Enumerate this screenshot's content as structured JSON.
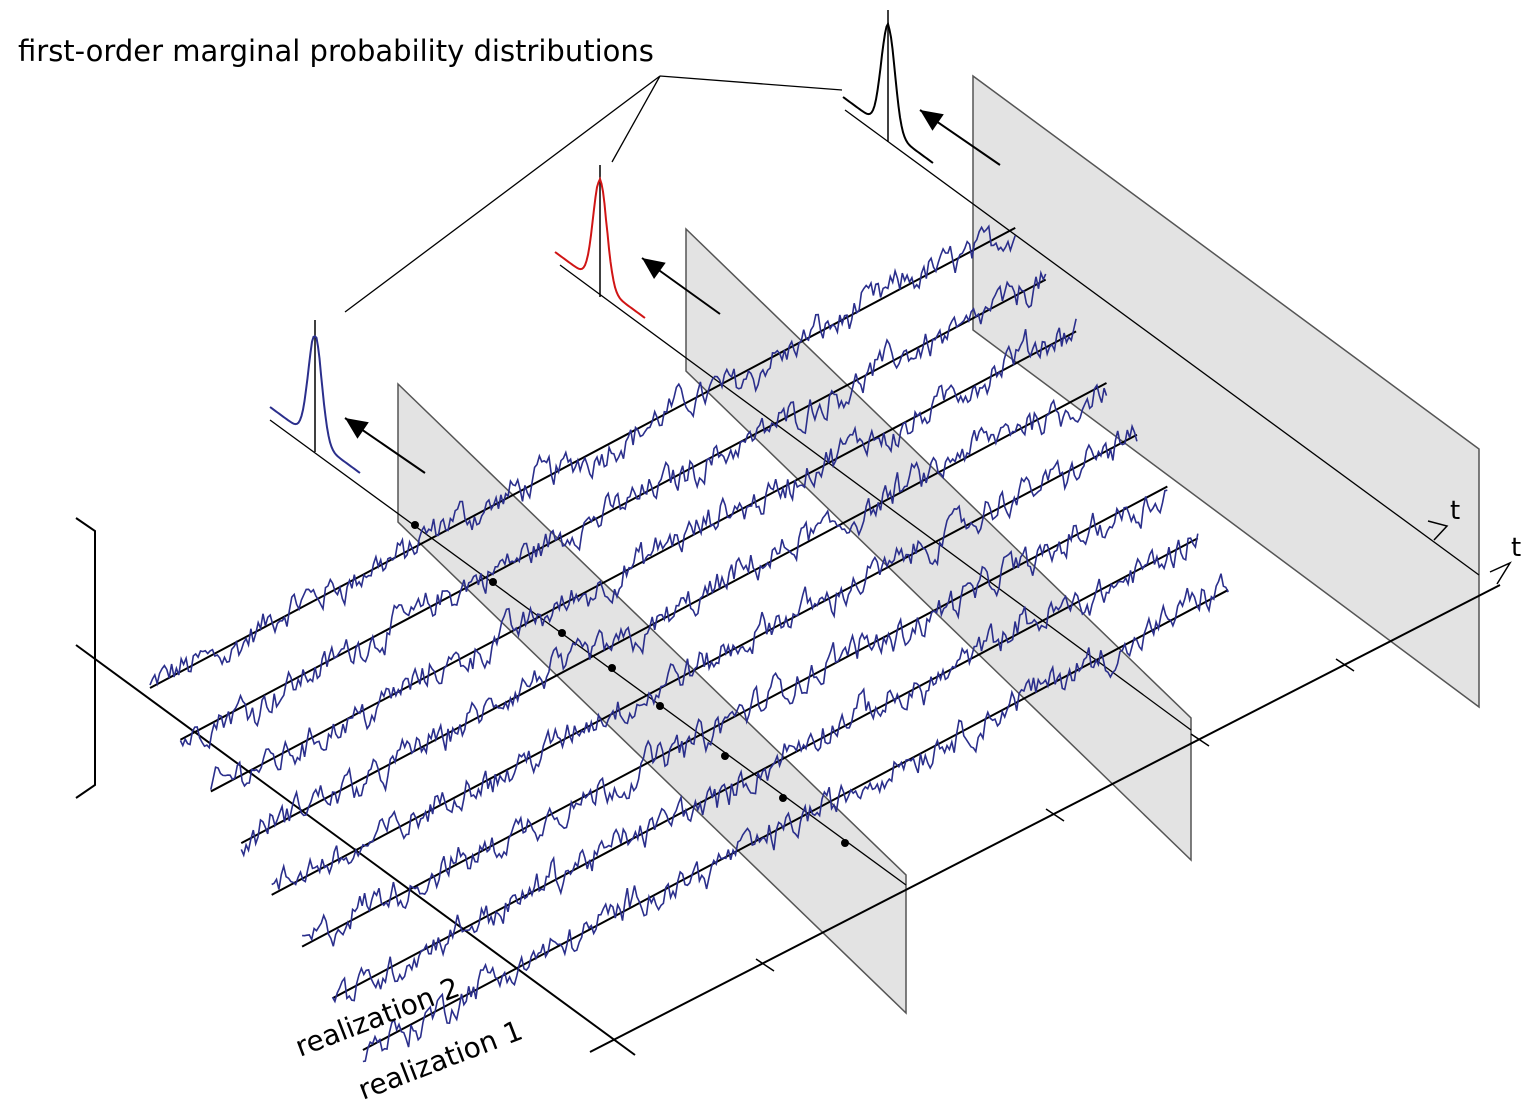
{
  "title": "first-order marginal probability distributions",
  "axis_label_back": "t",
  "axis_label_front": "t",
  "realization_labels": [
    "realization 1",
    "realization 2"
  ],
  "colors": {
    "signal": "#2b2f8c",
    "plane_fill": "#e3e3e3",
    "axis": "#000000",
    "highlight_distribution": "#d01515"
  },
  "distributions": [
    {
      "name": "slice-1",
      "color": "#2b2f8c"
    },
    {
      "name": "slice-2",
      "color": "#d01515"
    },
    {
      "name": "slice-3",
      "color": "#000000"
    }
  ]
}
